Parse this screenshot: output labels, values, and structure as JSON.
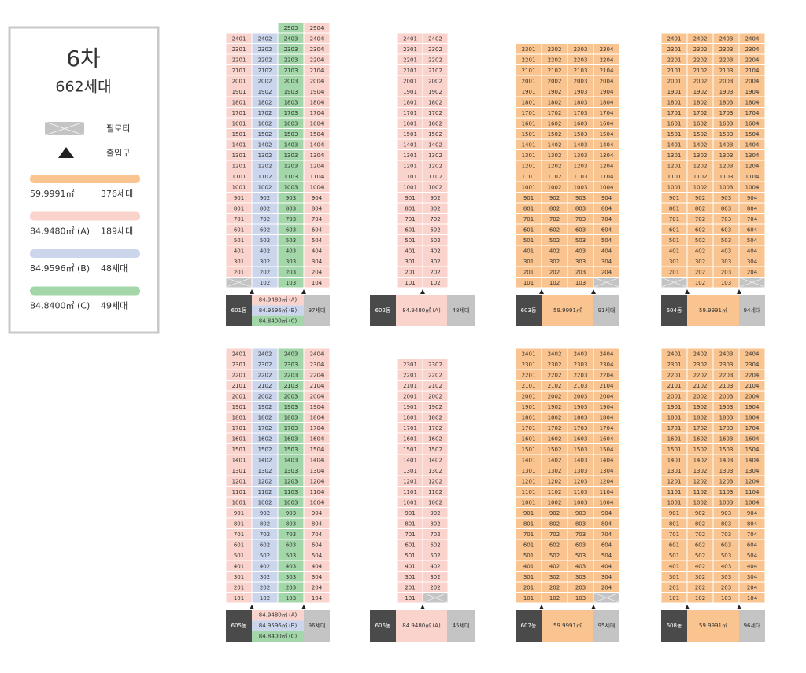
{
  "legend": {
    "title": "6차",
    "total": "662세대",
    "pilotis": "필로티",
    "entrance": "출입구",
    "pilotis_color": "#c4c4c4",
    "unit_types": [
      {
        "area": "59.9991㎡",
        "households": "376세대",
        "color": "#f9c48f"
      },
      {
        "area": "84.9480㎡ (A)",
        "households": "189세대",
        "color": "#f9d3cc"
      },
      {
        "area": "84.9596㎡ (B)",
        "households": "48세대",
        "color": "#cbd5ec"
      },
      {
        "area": "84.8400㎡ (C)",
        "households": "49세대",
        "color": "#a3d6a8"
      }
    ]
  },
  "buildings": [
    {
      "name": "601동",
      "areas": [
        {
          "text": "84.9480㎡ (A)",
          "color": "#f9d3cc"
        },
        {
          "text": "84.9596㎡ (B)",
          "color": "#cbd5ec"
        },
        {
          "text": "84.8400㎡ (C)",
          "color": "#a3d6a8"
        }
      ],
      "households": "97세대",
      "column_colors": [
        "#f9d3cc",
        "#cbd5ec",
        "#a3d6a8",
        "#f9d3cc"
      ],
      "rows": [
        [
          "2503",
          "2504"
        ],
        [
          "2401",
          "2402",
          "2403",
          "2404"
        ],
        [
          "2301",
          "2302",
          "2303",
          "2304"
        ],
        [
          "2201",
          "2202",
          "2203",
          "2204"
        ],
        [
          "2101",
          "2102",
          "2103",
          "2104"
        ],
        [
          "2001",
          "2002",
          "2003",
          "2004"
        ],
        [
          "1901",
          "1902",
          "1903",
          "1904"
        ],
        [
          "1801",
          "1802",
          "1803",
          "1804"
        ],
        [
          "1701",
          "1702",
          "1703",
          "1704"
        ],
        [
          "1601",
          "1602",
          "1603",
          "1604"
        ],
        [
          "1501",
          "1502",
          "1503",
          "1504"
        ],
        [
          "1401",
          "1402",
          "1403",
          "1404"
        ],
        [
          "1301",
          "1302",
          "1303",
          "1304"
        ],
        [
          "1201",
          "1202",
          "1203",
          "1204"
        ],
        [
          "1101",
          "1102",
          "1103",
          "1104"
        ],
        [
          "1001",
          "1002",
          "1003",
          "1004"
        ],
        [
          "901",
          "902",
          "903",
          "904"
        ],
        [
          "801",
          "802",
          "803",
          "804"
        ],
        [
          "701",
          "702",
          "703",
          "704"
        ],
        [
          "601",
          "602",
          "603",
          "604"
        ],
        [
          "501",
          "502",
          "503",
          "504"
        ],
        [
          "401",
          "402",
          "403",
          "404"
        ],
        [
          "301",
          "302",
          "303",
          "304"
        ],
        [
          "201",
          "202",
          "203",
          "204"
        ],
        [
          null,
          "102",
          "103",
          "104"
        ]
      ]
    },
    {
      "name": "602동",
      "areas": [
        {
          "text": "84.9480㎡ (A)",
          "color": "#f9d3cc"
        }
      ],
      "households": "48세대",
      "column_colors": [
        "#f9d3cc",
        "#f9d3cc"
      ],
      "rows": [
        [
          "2401",
          "2402"
        ],
        [
          "2301",
          "2302"
        ],
        [
          "2201",
          "2202"
        ],
        [
          "2101",
          "2102"
        ],
        [
          "2001",
          "2002"
        ],
        [
          "1901",
          "1902"
        ],
        [
          "1801",
          "1802"
        ],
        [
          "1701",
          "1702"
        ],
        [
          "1601",
          "1602"
        ],
        [
          "1501",
          "1502"
        ],
        [
          "1401",
          "1402"
        ],
        [
          "1301",
          "1302"
        ],
        [
          "1201",
          "1202"
        ],
        [
          "1101",
          "1102"
        ],
        [
          "1001",
          "1002"
        ],
        [
          "901",
          "902"
        ],
        [
          "801",
          "802"
        ],
        [
          "701",
          "702"
        ],
        [
          "601",
          "602"
        ],
        [
          "501",
          "502"
        ],
        [
          "401",
          "402"
        ],
        [
          "301",
          "302"
        ],
        [
          "201",
          "202"
        ],
        [
          "101",
          "102"
        ]
      ]
    },
    {
      "name": "603동",
      "areas": [
        {
          "text": "59.9991㎡",
          "color": "#f9c48f"
        }
      ],
      "households": "91세대",
      "column_colors": [
        "#f9c48f",
        "#f9c48f",
        "#f9c48f",
        "#f9c48f"
      ],
      "rows": [
        [
          "2301",
          "2302",
          "2303",
          "2304"
        ],
        [
          "2201",
          "2202",
          "2203",
          "2204"
        ],
        [
          "2101",
          "2102",
          "2103",
          "2104"
        ],
        [
          "2001",
          "2002",
          "2003",
          "2004"
        ],
        [
          "1901",
          "1902",
          "1903",
          "1904"
        ],
        [
          "1801",
          "1802",
          "1803",
          "1804"
        ],
        [
          "1701",
          "1702",
          "1703",
          "1704"
        ],
        [
          "1601",
          "1602",
          "1603",
          "1604"
        ],
        [
          "1501",
          "1502",
          "1503",
          "1504"
        ],
        [
          "1401",
          "1402",
          "1403",
          "1404"
        ],
        [
          "1301",
          "1302",
          "1303",
          "1304"
        ],
        [
          "1201",
          "1202",
          "1203",
          "1204"
        ],
        [
          "1101",
          "1102",
          "1103",
          "1104"
        ],
        [
          "1001",
          "1002",
          "1003",
          "1004"
        ],
        [
          "901",
          "902",
          "903",
          "904"
        ],
        [
          "801",
          "802",
          "803",
          "804"
        ],
        [
          "701",
          "702",
          "703",
          "704"
        ],
        [
          "601",
          "602",
          "603",
          "604"
        ],
        [
          "501",
          "502",
          "503",
          "504"
        ],
        [
          "401",
          "402",
          "403",
          "404"
        ],
        [
          "301",
          "302",
          "303",
          "304"
        ],
        [
          "201",
          "202",
          "203",
          "204"
        ],
        [
          "101",
          "102",
          "103",
          null
        ]
      ]
    },
    {
      "name": "604동",
      "areas": [
        {
          "text": "59.9991㎡",
          "color": "#f9c48f"
        }
      ],
      "households": "94세대",
      "column_colors": [
        "#f9c48f",
        "#f9c48f",
        "#f9c48f",
        "#f9c48f"
      ],
      "rows": [
        [
          "2401",
          "2402",
          "2403",
          "2404"
        ],
        [
          "2301",
          "2302",
          "2303",
          "2304"
        ],
        [
          "2201",
          "2202",
          "2203",
          "2204"
        ],
        [
          "2101",
          "2102",
          "2103",
          "2104"
        ],
        [
          "2001",
          "2002",
          "2003",
          "2004"
        ],
        [
          "1901",
          "1902",
          "1903",
          "1904"
        ],
        [
          "1801",
          "1802",
          "1803",
          "1804"
        ],
        [
          "1701",
          "1702",
          "1703",
          "1704"
        ],
        [
          "1601",
          "1602",
          "1603",
          "1604"
        ],
        [
          "1501",
          "1502",
          "1503",
          "1504"
        ],
        [
          "1401",
          "1402",
          "1403",
          "1404"
        ],
        [
          "1301",
          "1302",
          "1303",
          "1304"
        ],
        [
          "1201",
          "1202",
          "1203",
          "1204"
        ],
        [
          "1101",
          "1102",
          "1103",
          "1104"
        ],
        [
          "1001",
          "1002",
          "1003",
          "1004"
        ],
        [
          "901",
          "902",
          "903",
          "904"
        ],
        [
          "801",
          "802",
          "803",
          "804"
        ],
        [
          "701",
          "702",
          "703",
          "704"
        ],
        [
          "601",
          "602",
          "603",
          "604"
        ],
        [
          "501",
          "502",
          "503",
          "504"
        ],
        [
          "401",
          "402",
          "403",
          "404"
        ],
        [
          "301",
          "302",
          "303",
          "304"
        ],
        [
          "201",
          "202",
          "203",
          "204"
        ],
        [
          null,
          "102",
          "103",
          null
        ]
      ]
    },
    {
      "name": "605동",
      "areas": [
        {
          "text": "84.9480㎡ (A)",
          "color": "#f9d3cc"
        },
        {
          "text": "84.9596㎡ (B)",
          "color": "#cbd5ec"
        },
        {
          "text": "84.8400㎡ (C)",
          "color": "#a3d6a8"
        }
      ],
      "households": "96세대",
      "column_colors": [
        "#f9d3cc",
        "#cbd5ec",
        "#a3d6a8",
        "#f9d3cc"
      ],
      "rows": [
        [
          "2401",
          "2402",
          "2403",
          "2404"
        ],
        [
          "2301",
          "2302",
          "2303",
          "2304"
        ],
        [
          "2201",
          "2202",
          "2203",
          "2204"
        ],
        [
          "2101",
          "2102",
          "2103",
          "2104"
        ],
        [
          "2001",
          "2002",
          "2003",
          "2004"
        ],
        [
          "1901",
          "1902",
          "1903",
          "1904"
        ],
        [
          "1801",
          "1802",
          "1803",
          "1804"
        ],
        [
          "1701",
          "1702",
          "1703",
          "1704"
        ],
        [
          "1601",
          "1602",
          "1603",
          "1604"
        ],
        [
          "1501",
          "1502",
          "1503",
          "1504"
        ],
        [
          "1401",
          "1402",
          "1403",
          "1404"
        ],
        [
          "1301",
          "1302",
          "1303",
          "1304"
        ],
        [
          "1201",
          "1202",
          "1203",
          "1204"
        ],
        [
          "1101",
          "1102",
          "1103",
          "1104"
        ],
        [
          "1001",
          "1002",
          "1003",
          "1004"
        ],
        [
          "901",
          "902",
          "903",
          "904"
        ],
        [
          "801",
          "802",
          "803",
          "804"
        ],
        [
          "701",
          "702",
          "703",
          "704"
        ],
        [
          "601",
          "602",
          "603",
          "604"
        ],
        [
          "501",
          "502",
          "503",
          "504"
        ],
        [
          "401",
          "402",
          "403",
          "404"
        ],
        [
          "301",
          "302",
          "303",
          "304"
        ],
        [
          "201",
          "202",
          "203",
          "204"
        ],
        [
          "101",
          "102",
          "103",
          "104"
        ]
      ]
    },
    {
      "name": "606동",
      "areas": [
        {
          "text": "84.9480㎡ (A)",
          "color": "#f9d3cc"
        }
      ],
      "households": "45세대",
      "column_colors": [
        "#f9d3cc",
        "#f9d3cc"
      ],
      "rows": [
        [
          "2301",
          "2302"
        ],
        [
          "2201",
          "2202"
        ],
        [
          "2101",
          "2102"
        ],
        [
          "2001",
          "2002"
        ],
        [
          "1901",
          "1902"
        ],
        [
          "1801",
          "1802"
        ],
        [
          "1701",
          "1702"
        ],
        [
          "1601",
          "1602"
        ],
        [
          "1501",
          "1502"
        ],
        [
          "1401",
          "1402"
        ],
        [
          "1301",
          "1302"
        ],
        [
          "1201",
          "1202"
        ],
        [
          "1101",
          "1102"
        ],
        [
          "1001",
          "1002"
        ],
        [
          "901",
          "902"
        ],
        [
          "801",
          "802"
        ],
        [
          "701",
          "702"
        ],
        [
          "601",
          "602"
        ],
        [
          "501",
          "502"
        ],
        [
          "401",
          "402"
        ],
        [
          "301",
          "302"
        ],
        [
          "201",
          "202"
        ],
        [
          "101",
          null
        ]
      ]
    },
    {
      "name": "607동",
      "areas": [
        {
          "text": "59.9991㎡",
          "color": "#f9c48f"
        }
      ],
      "households": "95세대",
      "column_colors": [
        "#f9c48f",
        "#f9c48f",
        "#f9c48f",
        "#f9c48f"
      ],
      "rows": [
        [
          "2401",
          "2402",
          "2403",
          "2404"
        ],
        [
          "2301",
          "2302",
          "2303",
          "2304"
        ],
        [
          "2201",
          "2202",
          "2203",
          "2204"
        ],
        [
          "2101",
          "2102",
          "2103",
          "2104"
        ],
        [
          "2001",
          "2002",
          "2003",
          "2004"
        ],
        [
          "1901",
          "1902",
          "1903",
          "1904"
        ],
        [
          "1801",
          "1802",
          "1803",
          "1804"
        ],
        [
          "1701",
          "1702",
          "1703",
          "1704"
        ],
        [
          "1601",
          "1602",
          "1603",
          "1604"
        ],
        [
          "1501",
          "1502",
          "1503",
          "1504"
        ],
        [
          "1401",
          "1402",
          "1403",
          "1404"
        ],
        [
          "1301",
          "1302",
          "1303",
          "1304"
        ],
        [
          "1201",
          "1202",
          "1203",
          "1204"
        ],
        [
          "1101",
          "1102",
          "1103",
          "1104"
        ],
        [
          "1001",
          "1002",
          "1003",
          "1004"
        ],
        [
          "901",
          "902",
          "903",
          "904"
        ],
        [
          "801",
          "802",
          "803",
          "804"
        ],
        [
          "701",
          "702",
          "703",
          "704"
        ],
        [
          "601",
          "602",
          "603",
          "604"
        ],
        [
          "501",
          "502",
          "503",
          "504"
        ],
        [
          "401",
          "402",
          "403",
          "404"
        ],
        [
          "301",
          "302",
          "303",
          "304"
        ],
        [
          "201",
          "202",
          "203",
          "204"
        ],
        [
          "101",
          "102",
          "103",
          null
        ]
      ]
    },
    {
      "name": "608동",
      "areas": [
        {
          "text": "59.9991㎡",
          "color": "#f9c48f"
        }
      ],
      "households": "96세대",
      "column_colors": [
        "#f9c48f",
        "#f9c48f",
        "#f9c48f",
        "#f9c48f"
      ],
      "rows": [
        [
          "2401",
          "2402",
          "2403",
          "2404"
        ],
        [
          "2301",
          "2302",
          "2303",
          "2304"
        ],
        [
          "2201",
          "2202",
          "2203",
          "2204"
        ],
        [
          "2101",
          "2102",
          "2103",
          "2104"
        ],
        [
          "2001",
          "2002",
          "2003",
          "2004"
        ],
        [
          "1901",
          "1902",
          "1903",
          "1904"
        ],
        [
          "1801",
          "1802",
          "1803",
          "1804"
        ],
        [
          "1701",
          "1702",
          "1703",
          "1704"
        ],
        [
          "1601",
          "1602",
          "1603",
          "1604"
        ],
        [
          "1501",
          "1502",
          "1503",
          "1504"
        ],
        [
          "1401",
          "1402",
          "1403",
          "1404"
        ],
        [
          "1301",
          "1302",
          "1303",
          "1304"
        ],
        [
          "1201",
          "1202",
          "1203",
          "1204"
        ],
        [
          "1101",
          "1102",
          "1103",
          "1104"
        ],
        [
          "1001",
          "1002",
          "1003",
          "1004"
        ],
        [
          "901",
          "902",
          "903",
          "904"
        ],
        [
          "801",
          "802",
          "803",
          "804"
        ],
        [
          "701",
          "702",
          "703",
          "704"
        ],
        [
          "601",
          "602",
          "603",
          "604"
        ],
        [
          "501",
          "502",
          "503",
          "504"
        ],
        [
          "401",
          "402",
          "403",
          "404"
        ],
        [
          "301",
          "302",
          "303",
          "304"
        ],
        [
          "201",
          "202",
          "203",
          "204"
        ],
        [
          "101",
          "102",
          "103",
          "104"
        ]
      ]
    }
  ]
}
